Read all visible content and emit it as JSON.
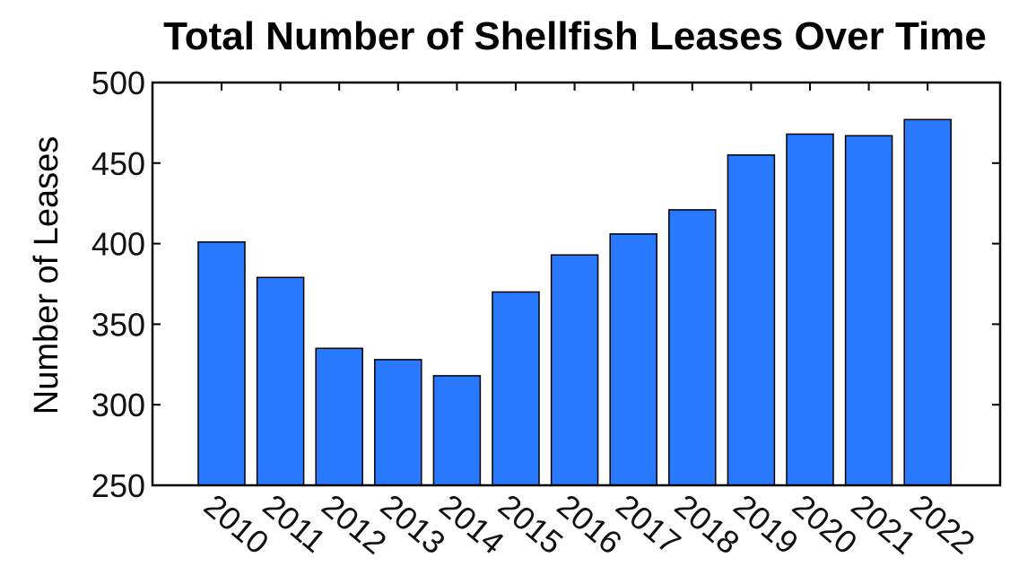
{
  "chart_data": {
    "type": "bar",
    "title": "Total Number of Shellfish Leases Over Time",
    "xlabel": "",
    "ylabel": "Number of Leases",
    "categories": [
      "2010",
      "2011",
      "2012",
      "2013",
      "2014",
      "2015",
      "2016",
      "2017",
      "2018",
      "2019",
      "2020",
      "2021",
      "2022"
    ],
    "values": [
      401,
      379,
      335,
      328,
      318,
      370,
      393,
      406,
      421,
      455,
      468,
      467,
      477
    ],
    "ylim": [
      250,
      500
    ],
    "yticks": [
      "250",
      "300",
      "350",
      "400",
      "450",
      "500"
    ],
    "grid": false,
    "legend": "none",
    "bar_color": "#2979ff",
    "edge_color": "#000000"
  }
}
